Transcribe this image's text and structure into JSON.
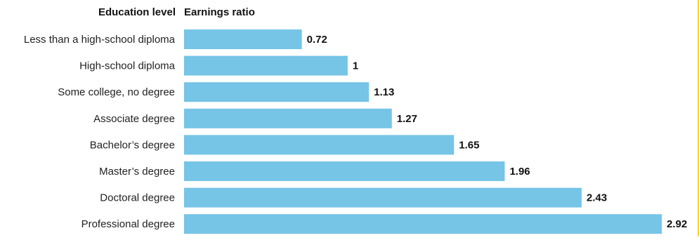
{
  "header": {
    "category_column": "Education level",
    "value_column": "Earnings ratio"
  },
  "colors": {
    "bar": "#76c4e6",
    "accent_edge": "#ffd21f",
    "text": "#222222"
  },
  "chart_data": {
    "type": "bar",
    "orientation": "horizontal",
    "title": "",
    "xlabel": "Earnings ratio",
    "ylabel": "Education level",
    "xlim": [
      0,
      2.92
    ],
    "grid": false,
    "categories": [
      "Less than a high-school diploma",
      "High-school diploma",
      "Some college, no degree",
      "Associate degree",
      "Bachelor’s degree",
      "Master’s degree",
      "Doctoral degree",
      "Professional degree"
    ],
    "values": [
      0.72,
      1,
      1.13,
      1.27,
      1.65,
      1.96,
      2.43,
      2.92
    ],
    "value_labels": [
      "0.72",
      "1",
      "1.13",
      "1.27",
      "1.65",
      "1.96",
      "2.43",
      "2.92"
    ]
  }
}
